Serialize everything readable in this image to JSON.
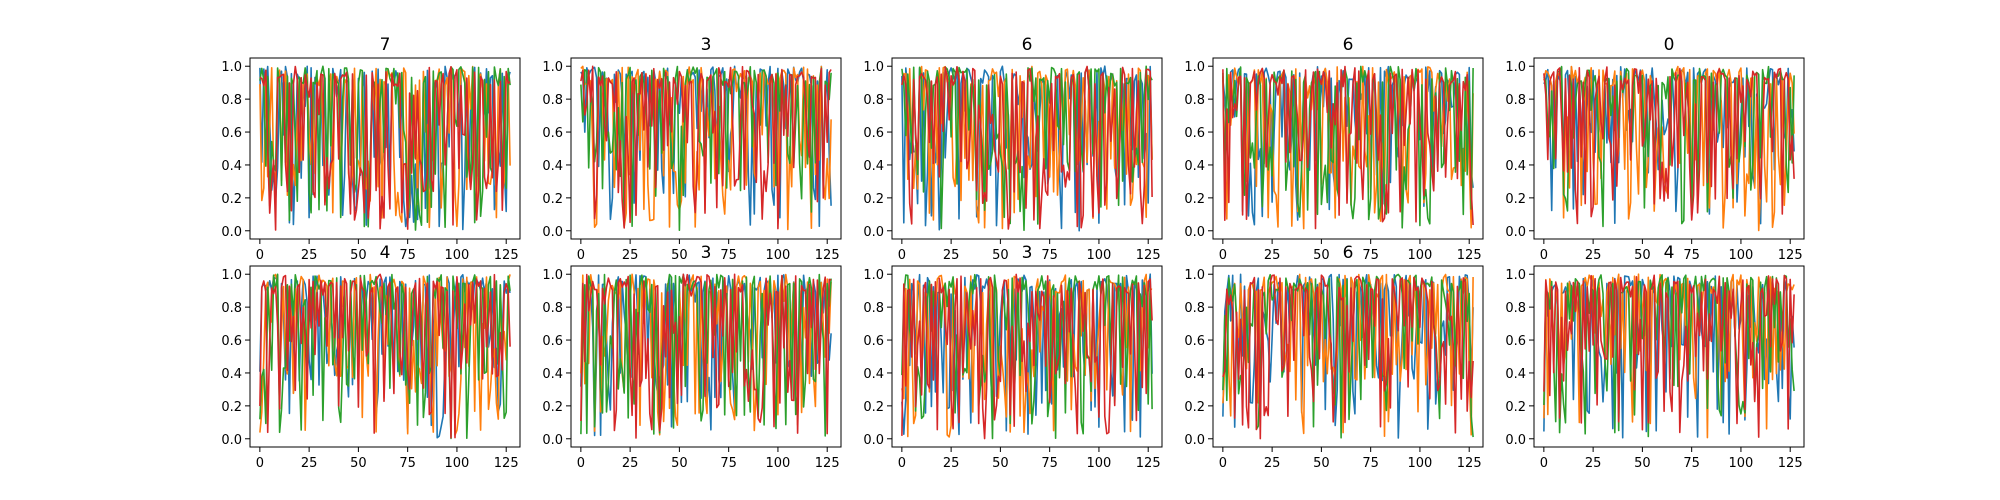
{
  "chart_data": {
    "type": "line",
    "series_colors": [
      "#1f77b4",
      "#ff7f0e",
      "#2ca02c",
      "#d62728"
    ],
    "x_ticks": [
      0,
      25,
      50,
      75,
      100,
      125
    ],
    "x_tick_labels": [
      "0",
      "25",
      "50",
      "75",
      "100",
      "125"
    ],
    "y_ticks": [
      0.0,
      0.2,
      0.4,
      0.6,
      0.8,
      1.0
    ],
    "y_tick_labels": [
      "0.0",
      "0.2",
      "0.4",
      "0.6",
      "0.8",
      "1.0"
    ],
    "xlim": [
      -5,
      132
    ],
    "ylim": [
      -0.05,
      1.05
    ],
    "grid": false,
    "points_per_series": 128,
    "panels": [
      {
        "title": "7",
        "series_means": [
          0.55,
          0.55,
          0.55,
          0.55
        ]
      },
      {
        "title": "3",
        "series_means": [
          0.82,
          0.62,
          0.8,
          0.72
        ]
      },
      {
        "title": "6",
        "series_means": [
          0.78,
          0.62,
          0.8,
          0.68
        ]
      },
      {
        "title": "6",
        "series_means": [
          0.8,
          0.72,
          0.66,
          0.78
        ]
      },
      {
        "title": "0",
        "series_means": [
          0.84,
          0.66,
          0.82,
          0.78
        ]
      },
      {
        "title": "4",
        "series_means": [
          0.78,
          0.72,
          0.7,
          0.76
        ]
      },
      {
        "title": "3",
        "series_means": [
          0.78,
          0.72,
          0.7,
          0.74
        ]
      },
      {
        "title": "3",
        "series_means": [
          0.76,
          0.74,
          0.78,
          0.72
        ]
      },
      {
        "title": "6",
        "series_means": [
          0.8,
          0.84,
          0.78,
          0.76
        ]
      },
      {
        "title": "4",
        "series_means": [
          0.76,
          0.8,
          0.74,
          0.74
        ]
      }
    ]
  }
}
